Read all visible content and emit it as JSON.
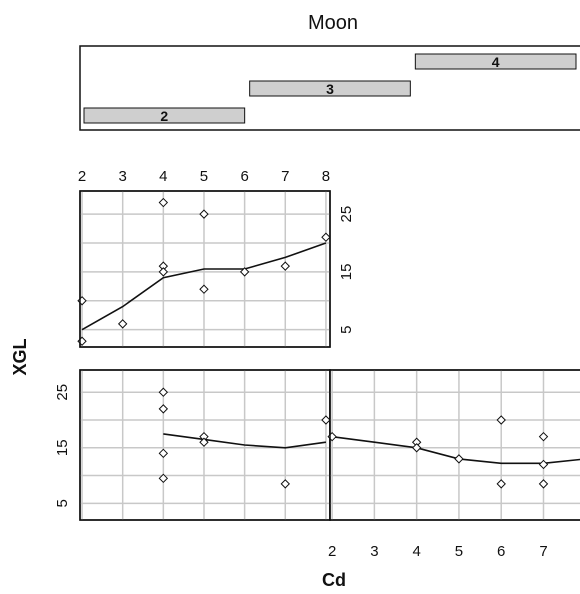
{
  "chart_data": {
    "type": "coplot",
    "title": "Moon",
    "xlabel": "Cd",
    "ylabel": "XGL",
    "x_ticks": [
      2,
      3,
      4,
      5,
      6,
      7,
      8
    ],
    "y_ticks": [
      5,
      15,
      25
    ],
    "xlim": [
      1.95,
      8.1
    ],
    "ylim": [
      2,
      29
    ],
    "grid": true,
    "intervals": [
      {
        "label": "2",
        "from": 1.0,
        "to": 2.0
      },
      {
        "label": "3",
        "from": 2.0,
        "to": 3.0
      },
      {
        "label": "4",
        "from": 3.0,
        "to": 4.0
      }
    ],
    "panels": [
      {
        "interval": "2",
        "points": [
          {
            "x": 4,
            "y": 25
          },
          {
            "x": 4,
            "y": 22
          },
          {
            "x": 4,
            "y": 14
          },
          {
            "x": 4,
            "y": 9.5
          },
          {
            "x": 5,
            "y": 17
          },
          {
            "x": 5,
            "y": 16
          },
          {
            "x": 7,
            "y": 8.5
          },
          {
            "x": 8,
            "y": 20
          }
        ],
        "smooth": [
          {
            "x": 4,
            "y": 17.5
          },
          {
            "x": 5,
            "y": 16.5
          },
          {
            "x": 6,
            "y": 15.5
          },
          {
            "x": 7,
            "y": 15
          },
          {
            "x": 8,
            "y": 16
          }
        ]
      },
      {
        "interval": "3",
        "points": [
          {
            "x": 2,
            "y": 17
          },
          {
            "x": 4,
            "y": 16
          },
          {
            "x": 4,
            "y": 15
          },
          {
            "x": 5,
            "y": 13
          },
          {
            "x": 6,
            "y": 20
          },
          {
            "x": 6,
            "y": 8.5
          },
          {
            "x": 7,
            "y": 17
          },
          {
            "x": 7,
            "y": 12
          },
          {
            "x": 7,
            "y": 8.5
          },
          {
            "x": 8,
            "y": 13
          }
        ],
        "smooth": [
          {
            "x": 2,
            "y": 17
          },
          {
            "x": 3,
            "y": 16
          },
          {
            "x": 4,
            "y": 15
          },
          {
            "x": 5,
            "y": 13
          },
          {
            "x": 6,
            "y": 12.2
          },
          {
            "x": 7,
            "y": 12.2
          },
          {
            "x": 8,
            "y": 13
          }
        ]
      },
      {
        "interval": "4",
        "points": [
          {
            "x": 2,
            "y": 10
          },
          {
            "x": 2,
            "y": 3
          },
          {
            "x": 3,
            "y": 6
          },
          {
            "x": 4,
            "y": 27
          },
          {
            "x": 4,
            "y": 16
          },
          {
            "x": 4,
            "y": 15
          },
          {
            "x": 5,
            "y": 25
          },
          {
            "x": 5,
            "y": 12
          },
          {
            "x": 6,
            "y": 15
          },
          {
            "x": 7,
            "y": 16
          },
          {
            "x": 8,
            "y": 21
          }
        ],
        "smooth": [
          {
            "x": 2,
            "y": 5
          },
          {
            "x": 3,
            "y": 9
          },
          {
            "x": 4,
            "y": 14
          },
          {
            "x": 5,
            "y": 15.5
          },
          {
            "x": 6,
            "y": 15.5
          },
          {
            "x": 7,
            "y": 17.5
          },
          {
            "x": 8,
            "y": 20
          }
        ]
      }
    ]
  }
}
